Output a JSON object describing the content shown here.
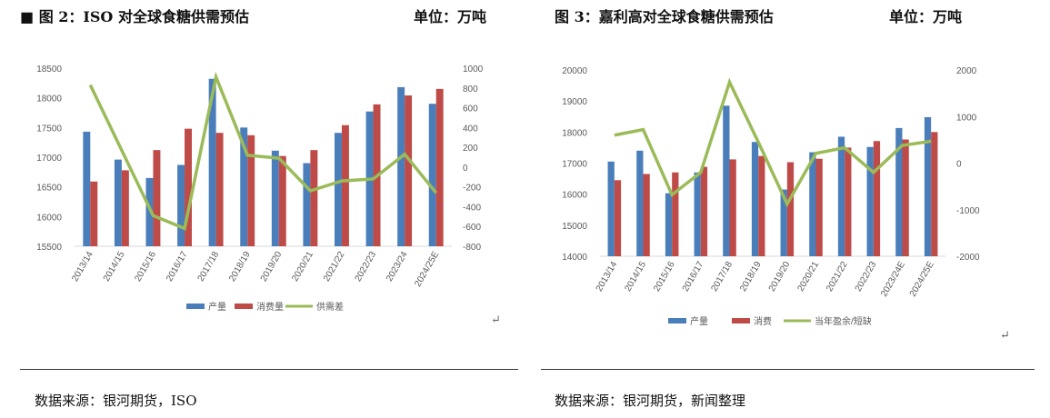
{
  "left": {
    "title": "■ 图 2：ISO 对全球食糖供需预估",
    "unit": "单位：万吨",
    "source": "数据来源：银河期货，ISO"
  },
  "right": {
    "title": "图 3：嘉利高对全球食糖供需预估",
    "unit": "单位：万吨",
    "source": "数据来源：银河期货，新闻整理"
  },
  "colors": {
    "bar1": "#4a7ebb",
    "bar2": "#be4b48",
    "line": "#9bbb59"
  },
  "chart_data": [
    {
      "type": "bar",
      "categories": [
        "2013/14",
        "2014/15",
        "2015/16",
        "2016/17",
        "2017/18",
        "2018/19",
        "2019/20",
        "2020/21",
        "2021/22",
        "2022/23",
        "2023/24",
        "2024/25E"
      ],
      "series": [
        {
          "name": "产量",
          "type": "bar",
          "axis": "left",
          "values": [
            17430,
            16960,
            16650,
            16870,
            18320,
            17500,
            17110,
            16900,
            17410,
            17770,
            18180,
            17900
          ]
        },
        {
          "name": "消费量",
          "type": "bar",
          "axis": "left",
          "values": [
            16590,
            16780,
            17120,
            17480,
            17410,
            17370,
            17020,
            17120,
            17540,
            17890,
            18040,
            18150
          ]
        },
        {
          "name": "供需差",
          "type": "line",
          "axis": "right",
          "values": [
            830,
            170,
            -490,
            -620,
            910,
            120,
            90,
            -240,
            -140,
            -120,
            130,
            -260
          ]
        }
      ],
      "ylim": [
        15500,
        18500
      ],
      "yticks": [
        15500,
        16000,
        16500,
        17000,
        17500,
        18000,
        18500
      ],
      "y2lim": [
        -800,
        1000
      ],
      "y2ticks": [
        -800,
        -600,
        -400,
        -200,
        0,
        200,
        400,
        600,
        800,
        1000
      ],
      "legend": "bottom"
    },
    {
      "type": "bar",
      "categories": [
        "2013/14",
        "2014/15",
        "2015/16",
        "2016/17",
        "2017/18",
        "2018/19",
        "2019/20",
        "2020/21",
        "2021/22",
        "2022/23",
        "2023/24E",
        "2024/25E"
      ],
      "series": [
        {
          "name": "产量",
          "type": "bar",
          "axis": "left",
          "values": [
            17050,
            17400,
            16030,
            16700,
            18850,
            17680,
            16150,
            17350,
            17850,
            17520,
            18130,
            18480
          ]
        },
        {
          "name": "消费",
          "type": "bar",
          "axis": "left",
          "values": [
            16450,
            16650,
            16700,
            16880,
            17120,
            17230,
            17030,
            17140,
            17500,
            17710,
            17760,
            18000
          ]
        },
        {
          "name": "当年盈余/短缺",
          "type": "line",
          "axis": "right",
          "values": [
            600,
            720,
            -680,
            -200,
            1740,
            450,
            -880,
            210,
            330,
            -200,
            380,
            470
          ]
        }
      ],
      "ylim": [
        14000,
        20000
      ],
      "yticks": [
        14000,
        15000,
        16000,
        17000,
        18000,
        19000,
        20000
      ],
      "y2lim": [
        -2000,
        2000
      ],
      "y2ticks": [
        -2000,
        -1000,
        0,
        1000,
        2000
      ],
      "legend": "bottom"
    }
  ]
}
